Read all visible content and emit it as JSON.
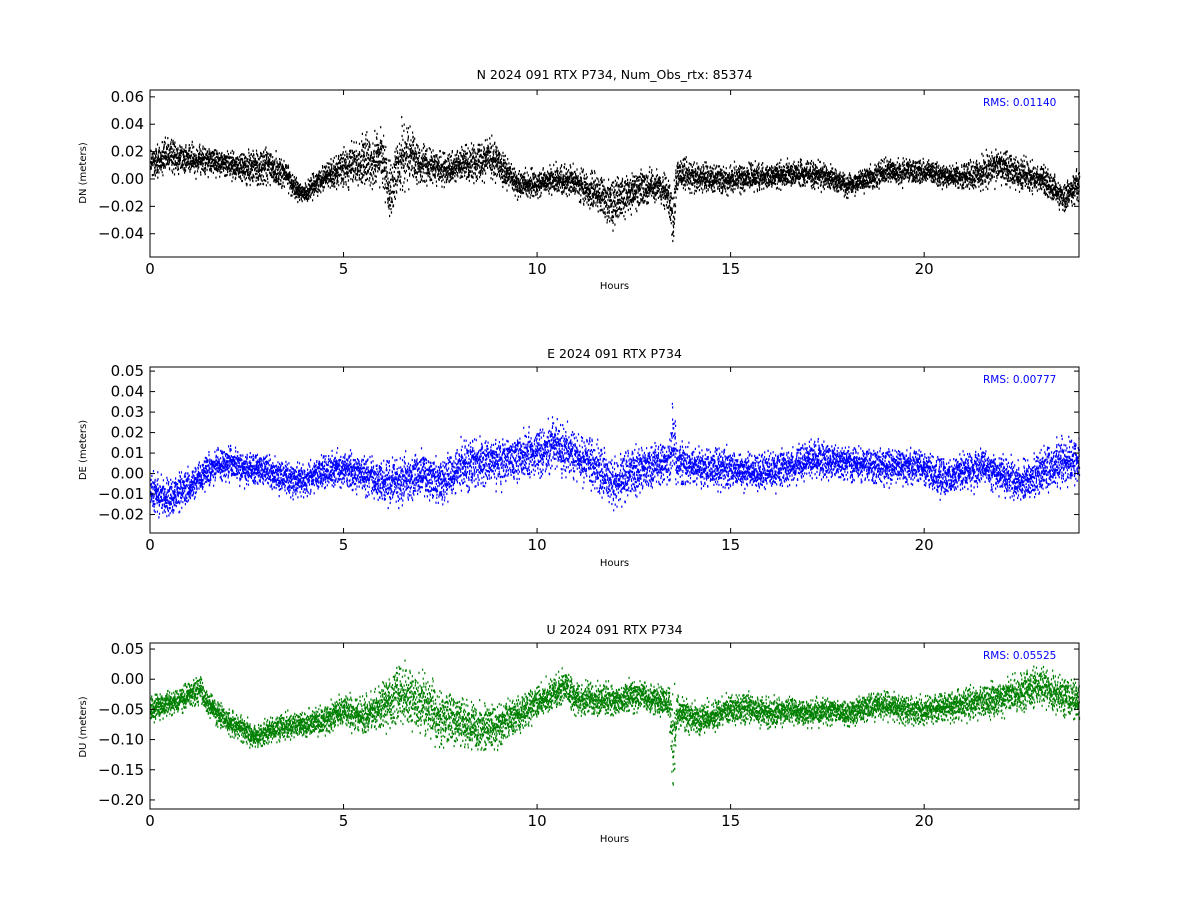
{
  "chart_data": [
    {
      "type": "scatter",
      "title": "N 2024 091 RTX  P734, Num_Obs_rtx: 85374",
      "xlabel": "Hours",
      "ylabel": "DN (meters)",
      "xlim": [
        0,
        24
      ],
      "ylim": [
        -0.057,
        0.065
      ],
      "xticks": [
        0,
        5,
        10,
        15,
        20
      ],
      "xtick_labels": [
        "0",
        "5",
        "10",
        "15",
        "20"
      ],
      "yticks": [
        -0.04,
        -0.02,
        0.0,
        0.02,
        0.04,
        0.06
      ],
      "ytick_labels": [
        "−0.04",
        "−0.02",
        "0.00",
        "0.02",
        "0.04",
        "0.06"
      ],
      "grid": false,
      "color": "#000000",
      "annotation": "RMS:  0.01140",
      "annotation_color": "#0000ff",
      "series": [
        {
          "x": [
            0,
            0.5,
            1.0,
            1.5,
            2.0,
            2.5,
            3.0,
            3.5,
            3.8,
            4.0,
            4.5,
            5.0,
            5.5,
            6.0,
            6.2,
            6.5,
            7.0,
            7.5,
            8.0,
            8.5,
            8.8,
            9.0,
            9.5,
            10.0,
            10.5,
            11.0,
            11.5,
            12.0,
            12.5,
            13.0,
            13.4,
            13.5,
            13.6,
            14.0,
            14.5,
            15.0,
            15.5,
            16.0,
            16.5,
            17.0,
            17.5,
            18.0,
            18.5,
            19.0,
            19.5,
            20.0,
            20.5,
            21.0,
            21.5,
            22.0,
            22.5,
            23.0,
            23.3,
            23.6,
            24.0
          ],
          "y": [
            0.012,
            0.018,
            0.015,
            0.014,
            0.012,
            0.008,
            0.01,
            0.004,
            -0.008,
            -0.01,
            0.003,
            0.008,
            0.013,
            0.015,
            -0.01,
            0.02,
            0.012,
            0.008,
            0.011,
            0.014,
            0.018,
            0.01,
            -0.004,
            -0.002,
            0.001,
            -0.002,
            -0.01,
            -0.016,
            -0.008,
            -0.004,
            -0.012,
            -0.03,
            0.004,
            0.003,
            0.001,
            0.0,
            0.002,
            0.003,
            0.004,
            0.005,
            0.003,
            -0.004,
            0.001,
            0.006,
            0.006,
            0.006,
            0.003,
            0.002,
            0.006,
            0.01,
            0.004,
            0.001,
            -0.006,
            -0.014,
            -0.002
          ],
          "spread": [
            0.012,
            0.012,
            0.011,
            0.01,
            0.009,
            0.012,
            0.014,
            0.01,
            0.007,
            0.007,
            0.009,
            0.013,
            0.018,
            0.022,
            0.02,
            0.024,
            0.014,
            0.011,
            0.011,
            0.014,
            0.016,
            0.012,
            0.01,
            0.01,
            0.01,
            0.011,
            0.014,
            0.018,
            0.013,
            0.012,
            0.012,
            0.02,
            0.012,
            0.011,
            0.01,
            0.01,
            0.01,
            0.009,
            0.009,
            0.01,
            0.009,
            0.008,
            0.008,
            0.009,
            0.009,
            0.009,
            0.008,
            0.009,
            0.011,
            0.013,
            0.012,
            0.01,
            0.01,
            0.012,
            0.01
          ]
        }
      ]
    },
    {
      "type": "scatter",
      "title": "E 2024 091 RTX  P734",
      "xlabel": "Hours",
      "ylabel": "DE (meters)",
      "xlim": [
        0,
        24
      ],
      "ylim": [
        -0.029,
        0.052
      ],
      "xticks": [
        0,
        5,
        10,
        15,
        20
      ],
      "xtick_labels": [
        "0",
        "5",
        "10",
        "15",
        "20"
      ],
      "yticks": [
        -0.02,
        -0.01,
        0.0,
        0.01,
        0.02,
        0.03,
        0.04,
        0.05
      ],
      "ytick_labels": [
        "−0.02",
        "−0.01",
        "0.00",
        "0.01",
        "0.02",
        "0.03",
        "0.04",
        "0.05"
      ],
      "grid": false,
      "color": "#0000ff",
      "annotation": "RMS:  0.00777",
      "annotation_color": "#0000ff",
      "series": [
        {
          "x": [
            0,
            0.5,
            1.0,
            1.5,
            2.0,
            2.5,
            3.0,
            3.5,
            4.0,
            4.5,
            5.0,
            5.5,
            6.0,
            6.5,
            7.0,
            7.5,
            8.0,
            8.5,
            9.0,
            9.5,
            10.0,
            10.4,
            11.0,
            11.5,
            12.0,
            12.5,
            13.0,
            13.4,
            13.5,
            13.6,
            14.0,
            14.5,
            15.0,
            15.5,
            16.0,
            16.5,
            17.0,
            17.5,
            18.0,
            18.5,
            19.0,
            19.5,
            20.0,
            20.5,
            21.0,
            21.5,
            22.0,
            22.5,
            23.0,
            23.5,
            24.0
          ],
          "y": [
            -0.008,
            -0.012,
            -0.006,
            0.002,
            0.006,
            0.003,
            0.002,
            -0.002,
            -0.003,
            0.002,
            0.003,
            0.0,
            -0.004,
            -0.003,
            0.0,
            -0.004,
            0.004,
            0.006,
            0.006,
            0.008,
            0.011,
            0.014,
            0.009,
            0.004,
            -0.004,
            0.002,
            0.004,
            0.006,
            0.02,
            0.006,
            0.004,
            0.003,
            0.003,
            0.001,
            0.002,
            0.004,
            0.007,
            0.007,
            0.006,
            0.005,
            0.004,
            0.004,
            0.003,
            -0.002,
            0.002,
            0.003,
            0.0,
            -0.004,
            0.001,
            0.006,
            0.006
          ],
          "spread": [
            0.009,
            0.009,
            0.008,
            0.008,
            0.008,
            0.008,
            0.008,
            0.008,
            0.008,
            0.008,
            0.008,
            0.009,
            0.011,
            0.011,
            0.01,
            0.011,
            0.011,
            0.011,
            0.011,
            0.011,
            0.011,
            0.012,
            0.011,
            0.011,
            0.012,
            0.011,
            0.01,
            0.01,
            0.02,
            0.01,
            0.009,
            0.009,
            0.009,
            0.009,
            0.009,
            0.009,
            0.009,
            0.009,
            0.008,
            0.008,
            0.008,
            0.008,
            0.008,
            0.009,
            0.009,
            0.009,
            0.009,
            0.01,
            0.01,
            0.011,
            0.01
          ]
        }
      ]
    },
    {
      "type": "scatter",
      "title": "U 2024 091 RTX  P734",
      "xlabel": "Hours",
      "ylabel": "DU (meters)",
      "xlim": [
        0,
        24
      ],
      "ylim": [
        -0.215,
        0.06
      ],
      "xticks": [
        0,
        5,
        10,
        15,
        20
      ],
      "xtick_labels": [
        "0",
        "5",
        "10",
        "15",
        "20"
      ],
      "yticks": [
        -0.2,
        -0.15,
        -0.1,
        -0.05,
        0.0,
        0.05
      ],
      "ytick_labels": [
        "−0.20",
        "−0.15",
        "−0.10",
        "−0.05",
        "0.00",
        "0.05"
      ],
      "grid": false,
      "color": "#008000",
      "annotation": "RMS:  0.05525",
      "annotation_color": "#0000ff",
      "series": [
        {
          "x": [
            0,
            0.5,
            1.0,
            1.3,
            1.5,
            2.0,
            2.5,
            2.8,
            3.0,
            3.5,
            4.0,
            4.5,
            5.0,
            5.5,
            6.0,
            6.5,
            7.0,
            7.5,
            8.0,
            8.5,
            9.0,
            9.5,
            10.0,
            10.5,
            10.7,
            11.0,
            11.5,
            12.0,
            12.5,
            13.0,
            13.4,
            13.5,
            13.6,
            14.0,
            14.5,
            15.0,
            15.5,
            16.0,
            16.5,
            17.0,
            17.5,
            18.0,
            18.5,
            19.0,
            19.5,
            20.0,
            20.5,
            21.0,
            21.5,
            22.0,
            22.5,
            23.0,
            23.5,
            24.0
          ],
          "y": [
            -0.045,
            -0.04,
            -0.025,
            -0.015,
            -0.04,
            -0.07,
            -0.085,
            -0.095,
            -0.085,
            -0.075,
            -0.075,
            -0.065,
            -0.05,
            -0.06,
            -0.045,
            -0.02,
            -0.04,
            -0.06,
            -0.07,
            -0.08,
            -0.075,
            -0.055,
            -0.035,
            -0.02,
            -0.008,
            -0.03,
            -0.035,
            -0.035,
            -0.025,
            -0.03,
            -0.04,
            -0.12,
            -0.05,
            -0.065,
            -0.06,
            -0.05,
            -0.045,
            -0.055,
            -0.05,
            -0.055,
            -0.05,
            -0.055,
            -0.045,
            -0.04,
            -0.05,
            -0.05,
            -0.045,
            -0.04,
            -0.035,
            -0.03,
            -0.02,
            -0.01,
            -0.025,
            -0.035
          ],
          "spread": [
            0.022,
            0.02,
            0.02,
            0.02,
            0.02,
            0.02,
            0.02,
            0.02,
            0.02,
            0.02,
            0.02,
            0.022,
            0.025,
            0.03,
            0.04,
            0.05,
            0.05,
            0.045,
            0.04,
            0.04,
            0.035,
            0.03,
            0.028,
            0.028,
            0.03,
            0.028,
            0.028,
            0.028,
            0.026,
            0.026,
            0.026,
            0.09,
            0.025,
            0.024,
            0.024,
            0.024,
            0.024,
            0.024,
            0.022,
            0.022,
            0.022,
            0.022,
            0.022,
            0.022,
            0.022,
            0.024,
            0.024,
            0.024,
            0.026,
            0.028,
            0.03,
            0.032,
            0.032,
            0.028
          ]
        }
      ]
    }
  ]
}
